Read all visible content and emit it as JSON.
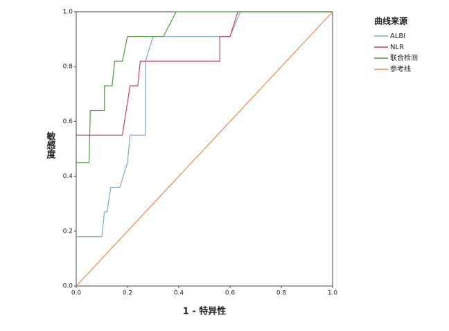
{
  "chart_data": {
    "type": "line",
    "xlabel": "1 - 特异性",
    "ylabel": "敏感度",
    "legend_title": "曲线来源",
    "legend": "right",
    "xlim": [
      0,
      1
    ],
    "ylim": [
      0,
      1
    ],
    "xticks": [
      {
        "value": 0,
        "label": "0.0"
      },
      {
        "value": 0.2,
        "label": "0.2"
      },
      {
        "value": 0.4,
        "label": "0.4"
      },
      {
        "value": 0.6,
        "label": "0.6"
      },
      {
        "value": 0.8,
        "label": "0.8"
      },
      {
        "value": 1,
        "label": "1.0"
      }
    ],
    "yticks": [
      {
        "value": 0,
        "label": "0.0"
      },
      {
        "value": 0.2,
        "label": "0.2"
      },
      {
        "value": 0.4,
        "label": "0.4"
      },
      {
        "value": 0.6,
        "label": "0.6"
      },
      {
        "value": 0.8,
        "label": "0.8"
      },
      {
        "value": 1,
        "label": "1.0"
      }
    ],
    "series": [
      {
        "name": "ALBI",
        "color": "#7aa6d8",
        "x": [
          0,
          0.1,
          0.11,
          0.12,
          0.135,
          0.17,
          0.2,
          0.21,
          0.27,
          0.27,
          0.3,
          0.6,
          0.64,
          1
        ],
        "values": [
          0.18,
          0.18,
          0.27,
          0.27,
          0.36,
          0.36,
          0.45,
          0.55,
          0.55,
          0.82,
          0.91,
          0.91,
          1,
          1
        ]
      },
      {
        "name": "NLR",
        "color": "#d43c62",
        "x": [
          0,
          0.18,
          0.21,
          0.24,
          0.25,
          0.56,
          0.56,
          0.6,
          0.63,
          1
        ],
        "values": [
          0.55,
          0.55,
          0.73,
          0.73,
          0.82,
          0.82,
          0.91,
          0.91,
          1,
          1
        ]
      },
      {
        "name": "联合检测",
        "color": "#4f9a3c",
        "x": [
          0,
          0.05,
          0.055,
          0.11,
          0.11,
          0.14,
          0.15,
          0.18,
          0.2,
          0.34,
          0.39,
          1
        ],
        "values": [
          0.45,
          0.45,
          0.64,
          0.64,
          0.73,
          0.73,
          0.82,
          0.82,
          0.91,
          0.91,
          1,
          1
        ]
      },
      {
        "name": "参考线",
        "color": "#f48a4e",
        "x": [
          0,
          1
        ],
        "values": [
          0,
          1
        ]
      }
    ]
  }
}
